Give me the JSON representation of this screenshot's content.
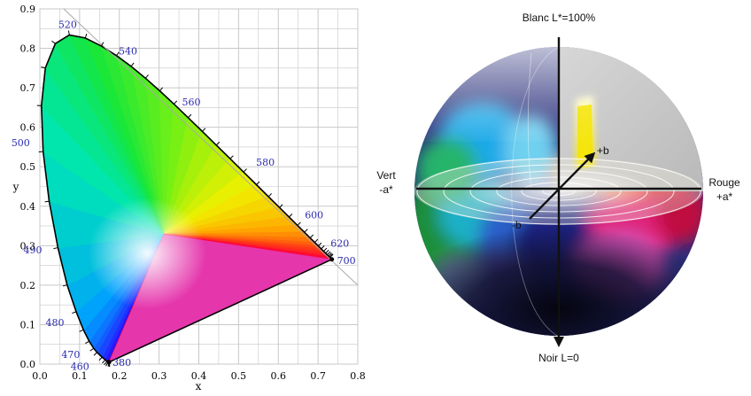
{
  "cie_diagram": {
    "x_axis": {
      "label": "x",
      "ticks": [
        "0.0",
        "0.1",
        "0.2",
        "0.3",
        "0.4",
        "0.5",
        "0.6",
        "0.7",
        "0.8"
      ],
      "range": [
        0,
        0.8
      ]
    },
    "y_axis": {
      "label": "y",
      "ticks": [
        "0.0",
        "0.1",
        "0.2",
        "0.3",
        "0.4",
        "0.5",
        "0.6",
        "0.7",
        "0.8",
        "0.9"
      ],
      "range": [
        0,
        0.9
      ]
    },
    "wavelength_labels": [
      {
        "text": "380",
        "x": 0.1741,
        "y": 0.005
      },
      {
        "text": "460",
        "x": 0.144,
        "y": 0.0297
      },
      {
        "text": "470",
        "x": 0.1241,
        "y": 0.0578
      },
      {
        "text": "480",
        "x": 0.0913,
        "y": 0.1327
      },
      {
        "text": "490",
        "x": 0.0454,
        "y": 0.295
      },
      {
        "text": "500",
        "x": 0.0082,
        "y": 0.5384
      },
      {
        "text": "520",
        "x": 0.0743,
        "y": 0.8338
      },
      {
        "text": "540",
        "x": 0.2296,
        "y": 0.7543
      },
      {
        "text": "560",
        "x": 0.3731,
        "y": 0.6245
      },
      {
        "text": "580",
        "x": 0.5125,
        "y": 0.4866
      },
      {
        "text": "600",
        "x": 0.627,
        "y": 0.3725
      },
      {
        "text": "620",
        "x": 0.6915,
        "y": 0.3083
      },
      {
        "text": "700",
        "x": 0.7347,
        "y": 0.2653
      }
    ],
    "locus": [
      [
        0.1741,
        0.005
      ],
      [
        0.1738,
        0.0049
      ],
      [
        0.1736,
        0.0049
      ],
      [
        0.173,
        0.0048
      ],
      [
        0.1714,
        0.0051
      ],
      [
        0.1689,
        0.0069
      ],
      [
        0.1644,
        0.0109
      ],
      [
        0.1566,
        0.0177
      ],
      [
        0.144,
        0.0297
      ],
      [
        0.1355,
        0.0399
      ],
      [
        0.1241,
        0.0578
      ],
      [
        0.1096,
        0.0868
      ],
      [
        0.0913,
        0.1327
      ],
      [
        0.0687,
        0.2007
      ],
      [
        0.0454,
        0.295
      ],
      [
        0.0235,
        0.4127
      ],
      [
        0.0082,
        0.5384
      ],
      [
        0.0039,
        0.6548
      ],
      [
        0.0139,
        0.7502
      ],
      [
        0.0389,
        0.812
      ],
      [
        0.0743,
        0.8338
      ],
      [
        0.1142,
        0.8262
      ],
      [
        0.1547,
        0.8059
      ],
      [
        0.1929,
        0.7816
      ],
      [
        0.2296,
        0.7543
      ],
      [
        0.2658,
        0.7243
      ],
      [
        0.3016,
        0.6923
      ],
      [
        0.3373,
        0.6589
      ],
      [
        0.3731,
        0.6245
      ],
      [
        0.4087,
        0.5896
      ],
      [
        0.4441,
        0.5547
      ],
      [
        0.4788,
        0.5202
      ],
      [
        0.5125,
        0.4866
      ],
      [
        0.5448,
        0.4544
      ],
      [
        0.5752,
        0.4242
      ],
      [
        0.6029,
        0.3965
      ],
      [
        0.627,
        0.3725
      ],
      [
        0.6482,
        0.3514
      ],
      [
        0.6658,
        0.334
      ],
      [
        0.6801,
        0.3197
      ],
      [
        0.6915,
        0.3083
      ],
      [
        0.7006,
        0.2993
      ],
      [
        0.7079,
        0.292
      ],
      [
        0.714,
        0.2859
      ],
      [
        0.719,
        0.2809
      ],
      [
        0.723,
        0.277
      ],
      [
        0.726,
        0.274
      ],
      [
        0.7283,
        0.2717
      ],
      [
        0.73,
        0.27
      ],
      [
        0.7347,
        0.2653
      ]
    ]
  },
  "lab_sphere": {
    "top_label": "Blanc L*=100%",
    "bottom_label": "Noir L=0",
    "left_label_line1": "Vert",
    "left_label_line2": "-a*",
    "right_label_line1": "Rouge",
    "right_label_line2": "+a*",
    "plus_b_label": "+b",
    "minus_b_label": "-b"
  },
  "colors": {
    "wavelength_text": "#2b2bb0",
    "grid": "#c8c8c8"
  }
}
